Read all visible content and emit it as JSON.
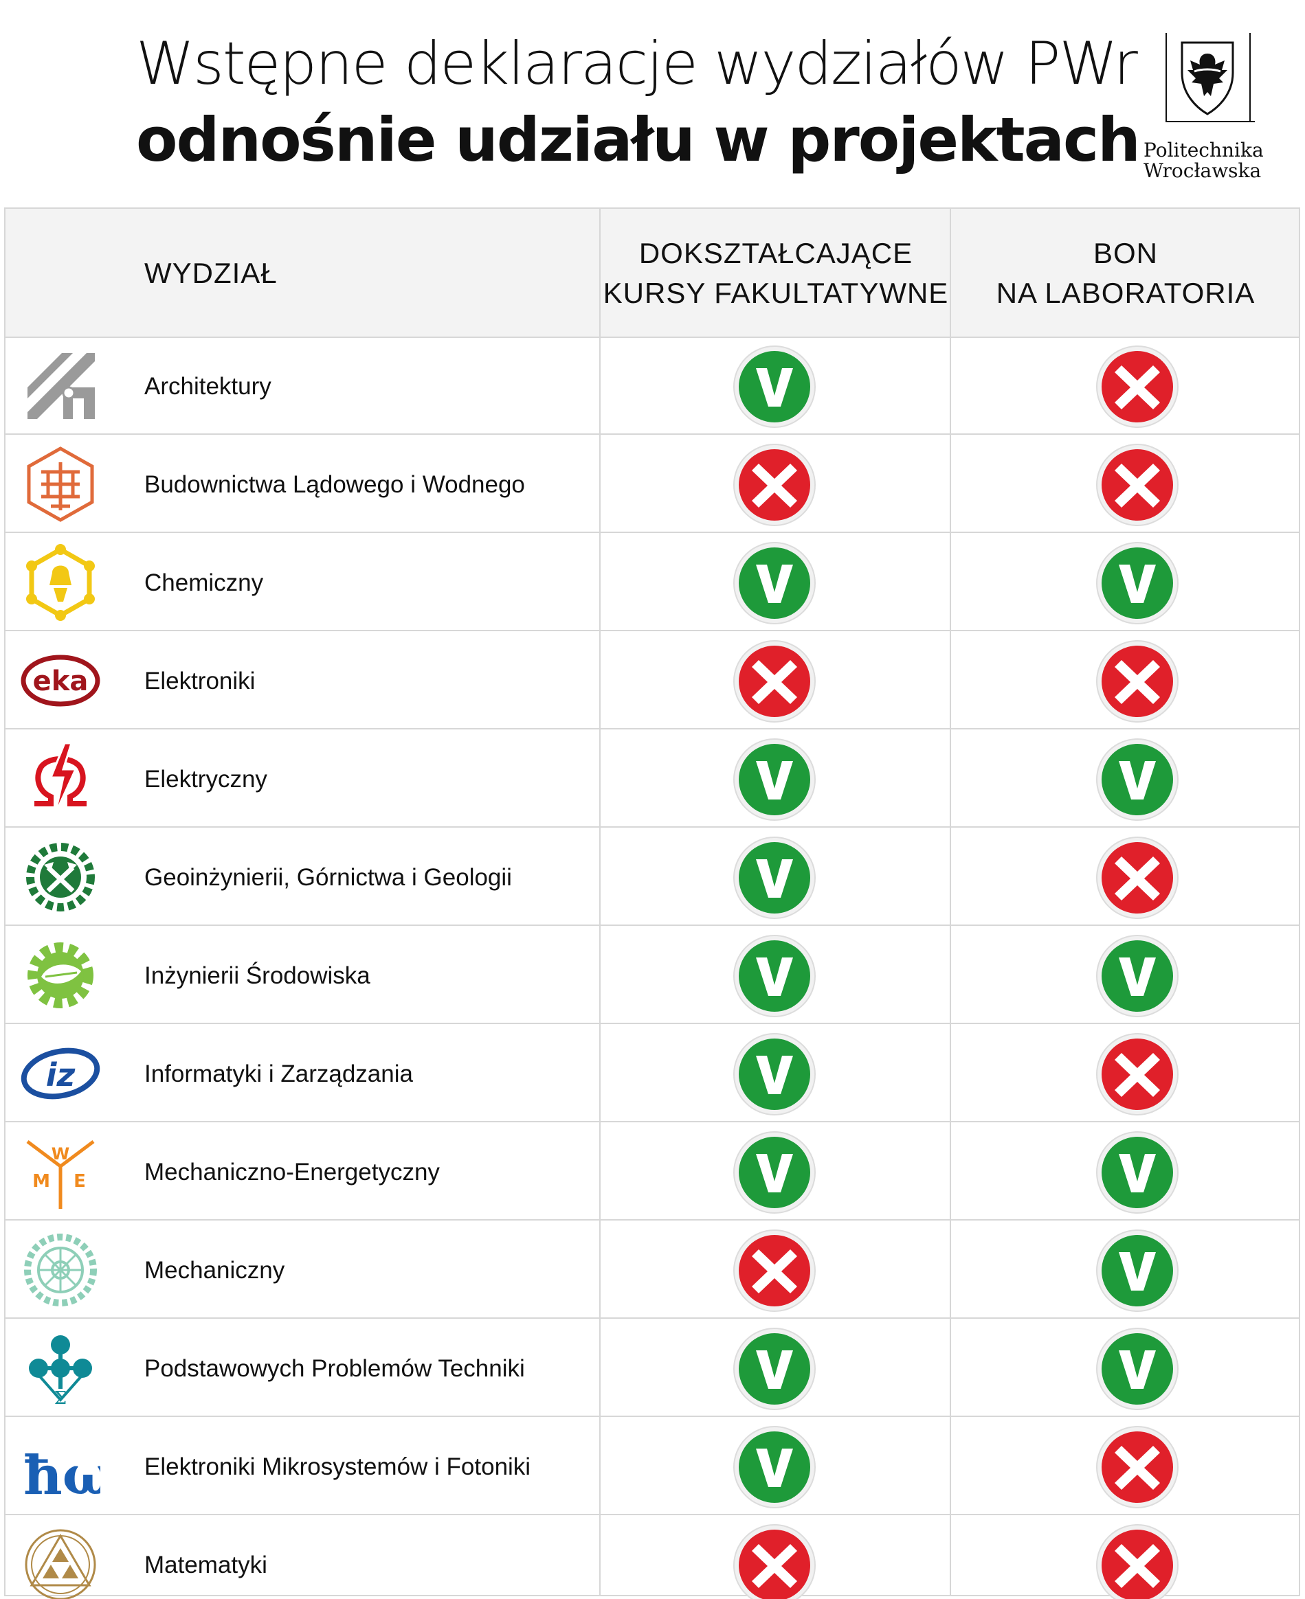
{
  "header": {
    "title_line1": "Wstępne deklaracje wydziałów PWr",
    "title_line2": "odnośnie udziału w projektach",
    "brand_line1": "Politechnika",
    "brand_line2": "Wrocławska"
  },
  "table": {
    "col_faculty": "WYDZIAŁ",
    "col_courses_line1": "DOKSZTAŁCAJĄCE",
    "col_courses_line2": "KURSY FAKULTATYWNE",
    "col_voucher_line1": "BON",
    "col_voucher_line2": "NA LABORATORIA",
    "colors": {
      "yes": "#1e9a3a",
      "no": "#e0202a"
    },
    "rows": [
      {
        "name": "Architektury",
        "logo": "architecture-logo-icon",
        "courses": "V",
        "voucher": "X"
      },
      {
        "name": "Budownictwa Lądowego i Wodnego",
        "logo": "civil-engineering-logo-icon",
        "courses": "X",
        "voucher": "X"
      },
      {
        "name": "Chemiczny",
        "logo": "chemistry-logo-icon",
        "courses": "V",
        "voucher": "V"
      },
      {
        "name": "Elektroniki",
        "logo": "electronics-logo-icon",
        "courses": "X",
        "voucher": "X"
      },
      {
        "name": "Elektryczny",
        "logo": "electrical-logo-icon",
        "courses": "V",
        "voucher": "V"
      },
      {
        "name": "Geoinżynierii, Górnictwa i Geologii",
        "logo": "mining-logo-icon",
        "courses": "V",
        "voucher": "X"
      },
      {
        "name": "Inżynierii Środowiska",
        "logo": "environmental-logo-icon",
        "courses": "V",
        "voucher": "V"
      },
      {
        "name": "Informatyki i Zarządzania",
        "logo": "informatics-logo-icon",
        "courses": "V",
        "voucher": "X"
      },
      {
        "name": "Mechaniczno-Energetyczny",
        "logo": "mechanical-energy-logo-icon",
        "courses": "V",
        "voucher": "V"
      },
      {
        "name": "Mechaniczny",
        "logo": "mechanical-logo-icon",
        "courses": "X",
        "voucher": "V"
      },
      {
        "name": "Podstawowych Problemów Techniki",
        "logo": "fundamental-problems-logo-icon",
        "courses": "V",
        "voucher": "V"
      },
      {
        "name": "Elektroniki Mikrosystemów i Fotoniki",
        "logo": "microsystems-logo-icon",
        "courses": "V",
        "voucher": "X"
      },
      {
        "name": "Matematyki",
        "logo": "mathematics-logo-icon",
        "courses": "X",
        "voucher": "X"
      }
    ]
  }
}
